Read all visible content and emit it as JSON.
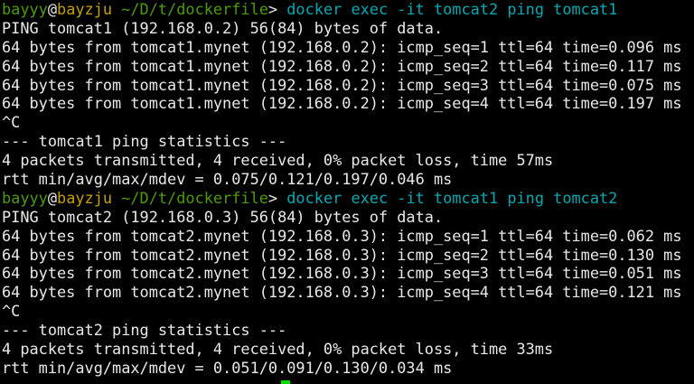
{
  "colors": {
    "background": "#000000",
    "text": "#e8e8e8",
    "user": "#4e9a06",
    "host": "#c4a000",
    "path": "#4e9a06",
    "command": "#06a8b0",
    "cursor": "#00e000"
  },
  "prompt": {
    "user": "bayyy",
    "at": "@",
    "host": "bayzju",
    "path": " ~/D/t/dockerfile",
    "symbol": "> "
  },
  "blocks": [
    {
      "command": "docker exec -it tomcat2 ping tomcat1",
      "output": [
        "PING tomcat1 (192.168.0.2) 56(84) bytes of data.",
        "64 bytes from tomcat1.mynet (192.168.0.2): icmp_seq=1 ttl=64 time=0.096 ms",
        "64 bytes from tomcat1.mynet (192.168.0.2): icmp_seq=2 ttl=64 time=0.117 ms",
        "64 bytes from tomcat1.mynet (192.168.0.2): icmp_seq=3 ttl=64 time=0.075 ms",
        "64 bytes from tomcat1.mynet (192.168.0.2): icmp_seq=4 ttl=64 time=0.197 ms",
        "^C",
        "--- tomcat1 ping statistics ---",
        "4 packets transmitted, 4 received, 0% packet loss, time 57ms",
        "rtt min/avg/max/mdev = 0.075/0.121/0.197/0.046 ms"
      ]
    },
    {
      "command": "docker exec -it tomcat1 ping tomcat2",
      "output": [
        "PING tomcat2 (192.168.0.3) 56(84) bytes of data.",
        "64 bytes from tomcat2.mynet (192.168.0.3): icmp_seq=1 ttl=64 time=0.062 ms",
        "64 bytes from tomcat2.mynet (192.168.0.3): icmp_seq=2 ttl=64 time=0.130 ms",
        "64 bytes from tomcat2.mynet (192.168.0.3): icmp_seq=3 ttl=64 time=0.051 ms",
        "64 bytes from tomcat2.mynet (192.168.0.3): icmp_seq=4 ttl=64 time=0.121 ms",
        "^C",
        "--- tomcat2 ping statistics ---",
        "4 packets transmitted, 4 received, 0% packet loss, time 33ms",
        "rtt min/avg/max/mdev = 0.051/0.091/0.130/0.034 ms"
      ]
    }
  ]
}
